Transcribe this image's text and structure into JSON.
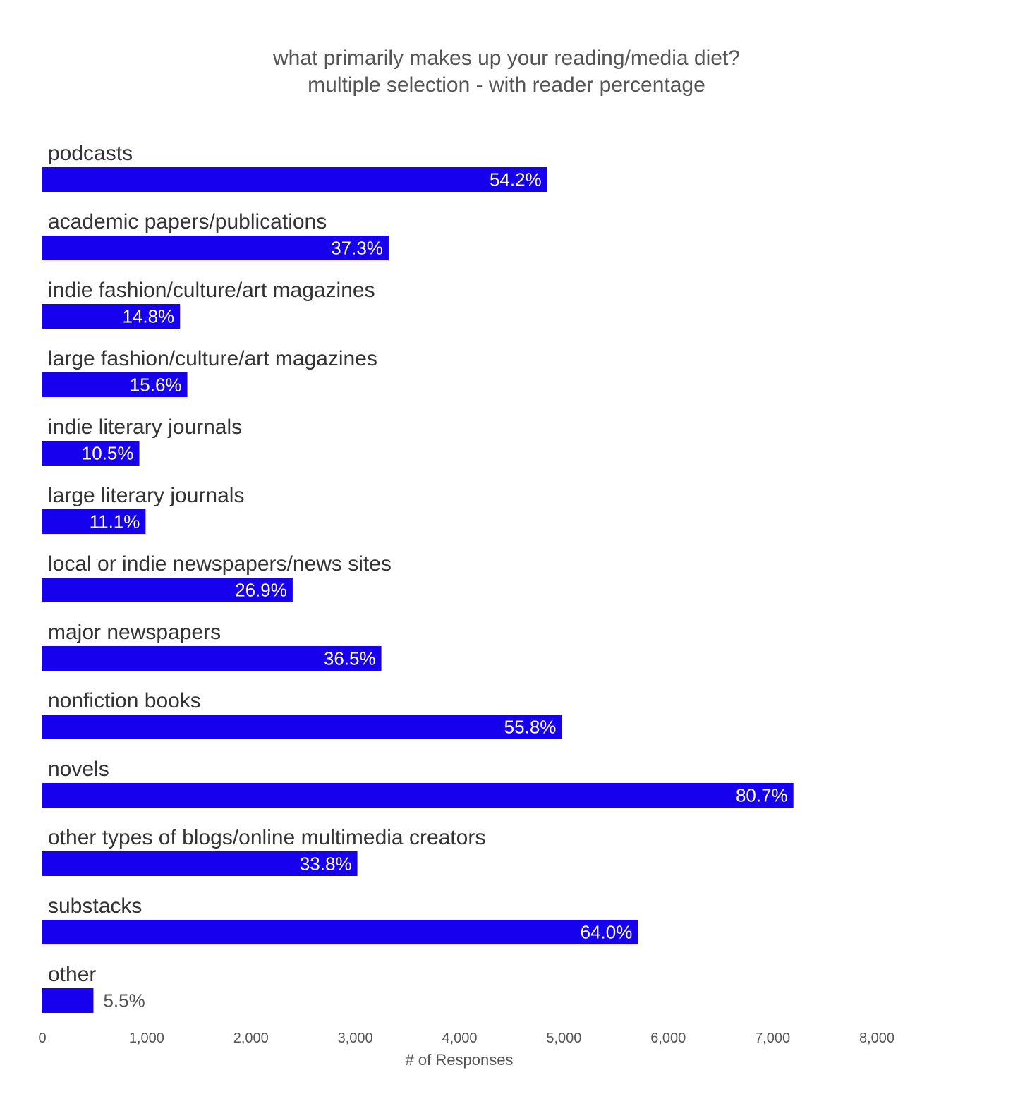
{
  "chart_data": {
    "type": "bar",
    "orientation": "horizontal",
    "title": "what primarily makes up your reading/media diet?",
    "subtitle": "multiple selection - with reader percentage",
    "xlabel": "# of Responses",
    "ylabel": "",
    "xlim": [
      0,
      8000
    ],
    "xticks": [
      0,
      1000,
      2000,
      3000,
      4000,
      5000,
      6000,
      7000,
      8000
    ],
    "xtick_labels": [
      "0",
      "1,000",
      "2,000",
      "3,000",
      "4,000",
      "5,000",
      "6,000",
      "7,000",
      "8,000"
    ],
    "grid": false,
    "bar_color": "#1600EE",
    "categories": [
      "podcasts",
      "academic papers/publications",
      "indie fashion/culture/art magazines",
      "large fashion/culture/art magazines",
      "indie literary journals",
      "large literary journals",
      "local or indie newspapers/news sites",
      "major newspapers",
      "nonfiction books",
      "novels",
      "other types of blogs/online multimedia creators",
      "substacks",
      "other"
    ],
    "values": [
      4840,
      3320,
      1320,
      1390,
      930,
      990,
      2400,
      3250,
      4980,
      7200,
      3020,
      5710,
      490
    ],
    "labels": [
      "54.2%",
      "37.3%",
      "14.8%",
      "15.6%",
      "10.5%",
      "11.1%",
      "26.9%",
      "36.5%",
      "55.8%",
      "80.7%",
      "33.8%",
      "64.0%",
      "5.5%"
    ]
  }
}
